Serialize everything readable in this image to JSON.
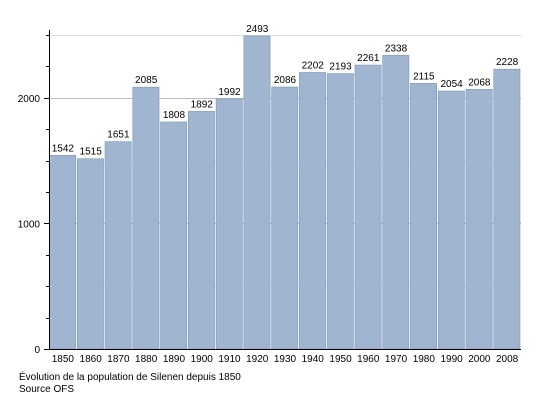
{
  "chart_data": {
    "type": "bar",
    "categories": [
      "1850",
      "1860",
      "1870",
      "1880",
      "1890",
      "1900",
      "1910",
      "1920",
      "1930",
      "1940",
      "1950",
      "1960",
      "1970",
      "1980",
      "1990",
      "2000",
      "2008"
    ],
    "values": [
      1542,
      1515,
      1651,
      2085,
      1808,
      1892,
      1992,
      2493,
      2086,
      2202,
      2193,
      2261,
      2338,
      2115,
      2054,
      2068,
      2228
    ],
    "y_ticks": [
      0,
      1000,
      2000
    ],
    "ylim": [
      0,
      2540
    ],
    "grid": true,
    "bar_color": "#9fb5d0",
    "bar_stroke": "#7f97b4",
    "grid_color": "#bfbfbf"
  },
  "caption": {
    "line1": "Évolution de la population de Silenen depuis 1850",
    "line2": "Source OFS"
  }
}
